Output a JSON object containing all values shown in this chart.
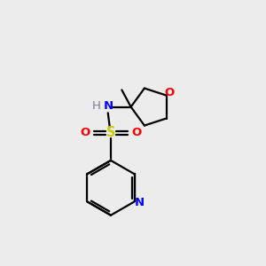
{
  "bg_color": "#ececec",
  "atom_colors": {
    "C": "#000000",
    "N": "#0000ff",
    "O": "#ff0000",
    "S": "#cccc00",
    "H": "#708090"
  },
  "bond_color": "#000000",
  "figsize": [
    3.0,
    3.0
  ],
  "dpi": 100,
  "lw": 1.6
}
